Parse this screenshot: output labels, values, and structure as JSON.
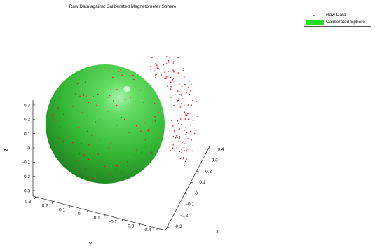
{
  "chart_data": {
    "type": "scatter",
    "title": "Raw Data against Caliberated Magnetometer Sphere",
    "xlabel": "X",
    "ylabel": "Y",
    "zlabel": "Z",
    "legend": {
      "placement": "top-right",
      "entries": [
        "Raw Data",
        "Caliberated Sphere"
      ]
    },
    "colors": {
      "raw_data": "#d21e1e",
      "sphere": "#2fbf2f",
      "sphere_highlight": "#9af09a",
      "sphere_shadow": "#1f7a1f",
      "axis": "#333333"
    },
    "axes": {
      "z_ticks": [
        "0.3",
        "0.2",
        "0.1",
        "0",
        "-0.1",
        "-0.2",
        "-0.3"
      ],
      "y_ticks": [
        "0.3",
        "0.2",
        "0.1",
        "0",
        "-0.1",
        "-0.2",
        "-0.3",
        "-0.4"
      ],
      "x_ticks": [
        "0.4",
        "0.3",
        "0.2",
        "0.1",
        "0",
        "-0.1",
        "-0.2",
        "-0.3"
      ],
      "x_range": [
        -0.3,
        0.4
      ],
      "y_range": [
        -0.4,
        0.3
      ],
      "z_range": [
        -0.3,
        0.3
      ],
      "grid": false
    },
    "sphere": {
      "center": [
        0,
        0,
        0
      ],
      "radius": 0.28
    },
    "series": [
      {
        "name": "Raw Data",
        "marker": "dot",
        "approx_points": 260
      },
      {
        "name": "Caliberated Sphere",
        "marker": "surface"
      }
    ]
  }
}
